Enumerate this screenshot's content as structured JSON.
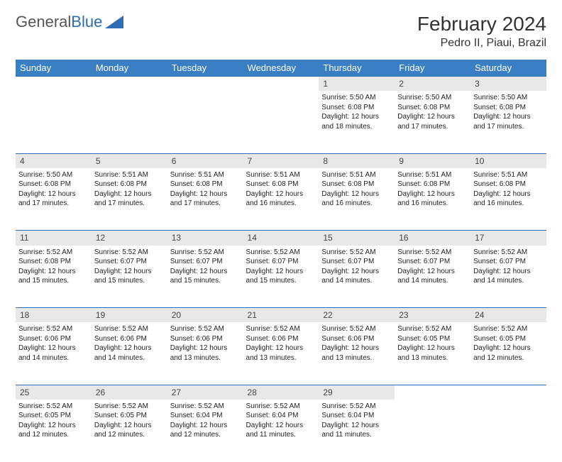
{
  "logo": {
    "text1": "General",
    "text2": "Blue"
  },
  "title": {
    "month": "February 2024",
    "location": "Pedro II, Piaui, Brazil"
  },
  "colors": {
    "header_bg": "#3a7fc4",
    "header_text": "#ffffff",
    "daynum_bg": "#e8e8e8",
    "border": "#2d6db3",
    "logo_gray": "#555555",
    "logo_blue": "#2d6db3"
  },
  "weekdays": [
    "Sunday",
    "Monday",
    "Tuesday",
    "Wednesday",
    "Thursday",
    "Friday",
    "Saturday"
  ],
  "weeks": [
    {
      "nums": [
        "",
        "",
        "",
        "",
        "1",
        "2",
        "3"
      ],
      "details": [
        null,
        null,
        null,
        null,
        {
          "sunrise": "Sunrise: 5:50 AM",
          "sunset": "Sunset: 6:08 PM",
          "day1": "Daylight: 12 hours",
          "day2": "and 18 minutes."
        },
        {
          "sunrise": "Sunrise: 5:50 AM",
          "sunset": "Sunset: 6:08 PM",
          "day1": "Daylight: 12 hours",
          "day2": "and 17 minutes."
        },
        {
          "sunrise": "Sunrise: 5:50 AM",
          "sunset": "Sunset: 6:08 PM",
          "day1": "Daylight: 12 hours",
          "day2": "and 17 minutes."
        }
      ]
    },
    {
      "nums": [
        "4",
        "5",
        "6",
        "7",
        "8",
        "9",
        "10"
      ],
      "details": [
        {
          "sunrise": "Sunrise: 5:50 AM",
          "sunset": "Sunset: 6:08 PM",
          "day1": "Daylight: 12 hours",
          "day2": "and 17 minutes."
        },
        {
          "sunrise": "Sunrise: 5:51 AM",
          "sunset": "Sunset: 6:08 PM",
          "day1": "Daylight: 12 hours",
          "day2": "and 17 minutes."
        },
        {
          "sunrise": "Sunrise: 5:51 AM",
          "sunset": "Sunset: 6:08 PM",
          "day1": "Daylight: 12 hours",
          "day2": "and 17 minutes."
        },
        {
          "sunrise": "Sunrise: 5:51 AM",
          "sunset": "Sunset: 6:08 PM",
          "day1": "Daylight: 12 hours",
          "day2": "and 16 minutes."
        },
        {
          "sunrise": "Sunrise: 5:51 AM",
          "sunset": "Sunset: 6:08 PM",
          "day1": "Daylight: 12 hours",
          "day2": "and 16 minutes."
        },
        {
          "sunrise": "Sunrise: 5:51 AM",
          "sunset": "Sunset: 6:08 PM",
          "day1": "Daylight: 12 hours",
          "day2": "and 16 minutes."
        },
        {
          "sunrise": "Sunrise: 5:51 AM",
          "sunset": "Sunset: 6:08 PM",
          "day1": "Daylight: 12 hours",
          "day2": "and 16 minutes."
        }
      ]
    },
    {
      "nums": [
        "11",
        "12",
        "13",
        "14",
        "15",
        "16",
        "17"
      ],
      "details": [
        {
          "sunrise": "Sunrise: 5:52 AM",
          "sunset": "Sunset: 6:08 PM",
          "day1": "Daylight: 12 hours",
          "day2": "and 15 minutes."
        },
        {
          "sunrise": "Sunrise: 5:52 AM",
          "sunset": "Sunset: 6:07 PM",
          "day1": "Daylight: 12 hours",
          "day2": "and 15 minutes."
        },
        {
          "sunrise": "Sunrise: 5:52 AM",
          "sunset": "Sunset: 6:07 PM",
          "day1": "Daylight: 12 hours",
          "day2": "and 15 minutes."
        },
        {
          "sunrise": "Sunrise: 5:52 AM",
          "sunset": "Sunset: 6:07 PM",
          "day1": "Daylight: 12 hours",
          "day2": "and 15 minutes."
        },
        {
          "sunrise": "Sunrise: 5:52 AM",
          "sunset": "Sunset: 6:07 PM",
          "day1": "Daylight: 12 hours",
          "day2": "and 14 minutes."
        },
        {
          "sunrise": "Sunrise: 5:52 AM",
          "sunset": "Sunset: 6:07 PM",
          "day1": "Daylight: 12 hours",
          "day2": "and 14 minutes."
        },
        {
          "sunrise": "Sunrise: 5:52 AM",
          "sunset": "Sunset: 6:07 PM",
          "day1": "Daylight: 12 hours",
          "day2": "and 14 minutes."
        }
      ]
    },
    {
      "nums": [
        "18",
        "19",
        "20",
        "21",
        "22",
        "23",
        "24"
      ],
      "details": [
        {
          "sunrise": "Sunrise: 5:52 AM",
          "sunset": "Sunset: 6:06 PM",
          "day1": "Daylight: 12 hours",
          "day2": "and 14 minutes."
        },
        {
          "sunrise": "Sunrise: 5:52 AM",
          "sunset": "Sunset: 6:06 PM",
          "day1": "Daylight: 12 hours",
          "day2": "and 14 minutes."
        },
        {
          "sunrise": "Sunrise: 5:52 AM",
          "sunset": "Sunset: 6:06 PM",
          "day1": "Daylight: 12 hours",
          "day2": "and 13 minutes."
        },
        {
          "sunrise": "Sunrise: 5:52 AM",
          "sunset": "Sunset: 6:06 PM",
          "day1": "Daylight: 12 hours",
          "day2": "and 13 minutes."
        },
        {
          "sunrise": "Sunrise: 5:52 AM",
          "sunset": "Sunset: 6:06 PM",
          "day1": "Daylight: 12 hours",
          "day2": "and 13 minutes."
        },
        {
          "sunrise": "Sunrise: 5:52 AM",
          "sunset": "Sunset: 6:05 PM",
          "day1": "Daylight: 12 hours",
          "day2": "and 13 minutes."
        },
        {
          "sunrise": "Sunrise: 5:52 AM",
          "sunset": "Sunset: 6:05 PM",
          "day1": "Daylight: 12 hours",
          "day2": "and 12 minutes."
        }
      ]
    },
    {
      "nums": [
        "25",
        "26",
        "27",
        "28",
        "29",
        "",
        ""
      ],
      "details": [
        {
          "sunrise": "Sunrise: 5:52 AM",
          "sunset": "Sunset: 6:05 PM",
          "day1": "Daylight: 12 hours",
          "day2": "and 12 minutes."
        },
        {
          "sunrise": "Sunrise: 5:52 AM",
          "sunset": "Sunset: 6:05 PM",
          "day1": "Daylight: 12 hours",
          "day2": "and 12 minutes."
        },
        {
          "sunrise": "Sunrise: 5:52 AM",
          "sunset": "Sunset: 6:04 PM",
          "day1": "Daylight: 12 hours",
          "day2": "and 12 minutes."
        },
        {
          "sunrise": "Sunrise: 5:52 AM",
          "sunset": "Sunset: 6:04 PM",
          "day1": "Daylight: 12 hours",
          "day2": "and 11 minutes."
        },
        {
          "sunrise": "Sunrise: 5:52 AM",
          "sunset": "Sunset: 6:04 PM",
          "day1": "Daylight: 12 hours",
          "day2": "and 11 minutes."
        },
        null,
        null
      ]
    }
  ]
}
